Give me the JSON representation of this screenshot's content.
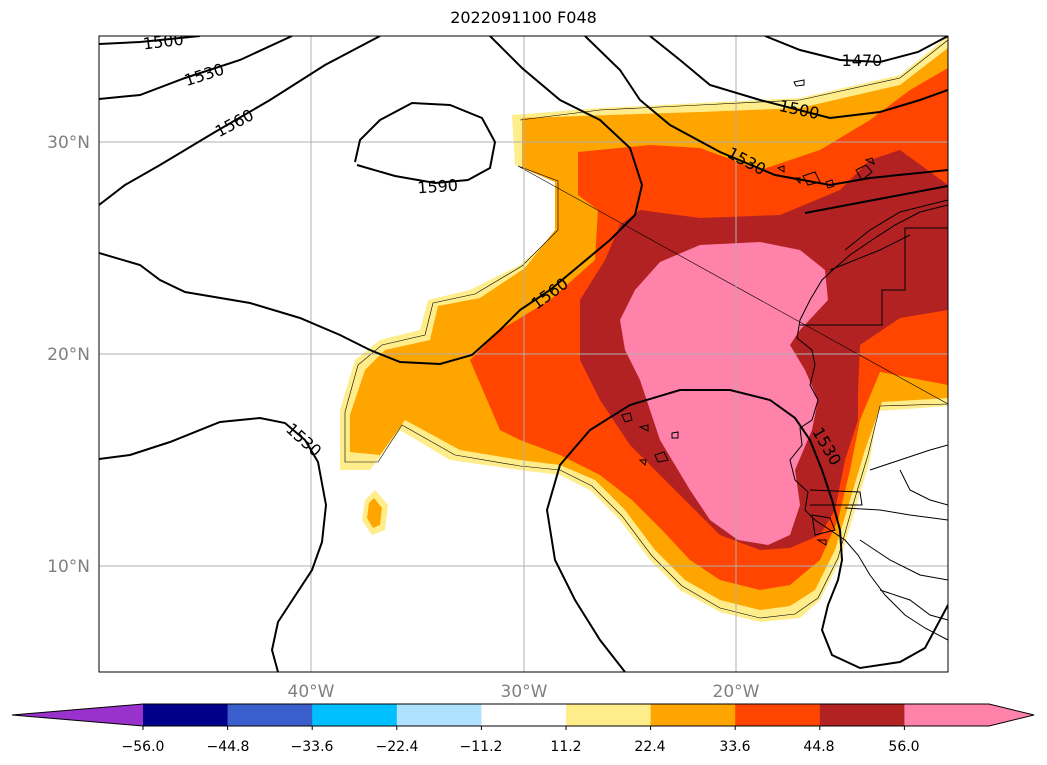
{
  "title": "2022091100 F048",
  "map": {
    "lat_labels": [
      "30°N",
      "20°N",
      "10°N"
    ],
    "lon_labels": [
      "40°W",
      "30°W",
      "20°W"
    ],
    "contour_labels": [
      "1500",
      "1530",
      "1560",
      "1590",
      "1560",
      "1530",
      "1500",
      "1470",
      "1530",
      "1530"
    ]
  },
  "colorbar": {
    "ticks": [
      "−56.0",
      "−44.8",
      "−33.6",
      "−22.4",
      "−11.2",
      "11.2",
      "22.4",
      "33.6",
      "44.8",
      "56.0"
    ],
    "colors": [
      "#9932cc",
      "#00008b",
      "#3a5fcd",
      "#00bfff",
      "#b0e2ff",
      "#ffffff",
      "#ffec8b",
      "#ffa500",
      "#ff4500",
      "#b22222",
      "#ff82ab",
      "#ff82ab"
    ]
  }
}
